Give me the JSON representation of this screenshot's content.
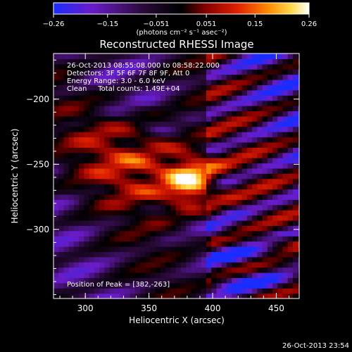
{
  "chart_data": {
    "type": "heatmap",
    "title": "Reconstructed RHESSI Image",
    "xlabel": "Heliocentric X (arcsec)",
    "ylabel": "Heliocentric Y (arcsec)",
    "xlim": [
      275,
      468
    ],
    "ylim": [
      -353,
      -165
    ],
    "xticks": [
      300,
      350,
      400,
      450
    ],
    "yticks": [
      -200,
      -250,
      -300
    ],
    "colorbar": {
      "range": [
        -0.26,
        0.26
      ],
      "ticks": [
        {
          "value": -0.26,
          "label": "-0.26"
        },
        {
          "value": -0.15,
          "label": "-0.15"
        },
        {
          "value": -0.051,
          "label": "-0.051"
        },
        {
          "value": 0.051,
          "label": "0.051"
        },
        {
          "value": 0.15,
          "label": "0.15"
        },
        {
          "value": 0.26,
          "label": "0.26"
        }
      ],
      "unit_label": "(photons cm⁻² s⁻¹ asec⁻²)",
      "colormap": [
        "#1a2cff",
        "#6a1cc8",
        "#2a0a3a",
        "#000000",
        "#8a0000",
        "#e02000",
        "#ff8a00",
        "#ffd84a",
        "#ffffff"
      ]
    },
    "info_lines": [
      "26-Oct-2013 08:55:08.000 to 08:58:22.000",
      "Detectors: 3F 5F 6F 7F 8F 9F, Att 0",
      "Energy Range: 3.0 - 6.0 keV",
      "Clean     Total counts: 1.49E+04"
    ],
    "peak_text": "Position of Peak = [382,-263]",
    "peak": {
      "x": 382,
      "y": -263,
      "value": 0.26
    },
    "footer_timestamp": "26-Oct-2013 23:54"
  }
}
